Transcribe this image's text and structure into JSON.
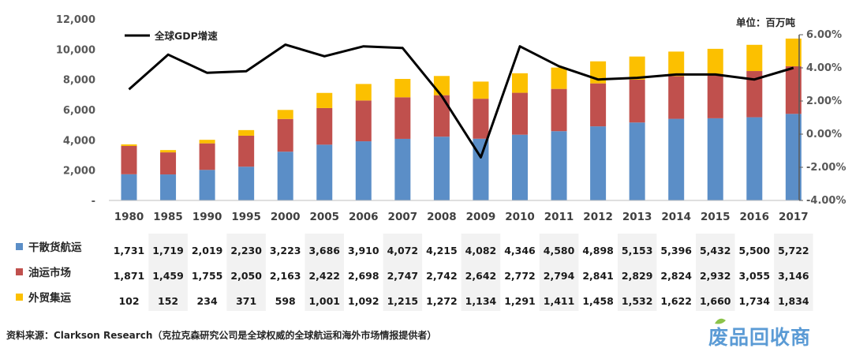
{
  "chart_data": {
    "type": "bar",
    "stacked": true,
    "categories": [
      "1980",
      "1985",
      "1990",
      "1995",
      "2000",
      "2005",
      "2006",
      "2007",
      "2008",
      "2009",
      "2010",
      "2011",
      "2012",
      "2013",
      "2014",
      "2015",
      "2016",
      "2017"
    ],
    "series": [
      {
        "name": "干散货航运",
        "color": "#5b8ec7",
        "values": [
          1731,
          1719,
          2019,
          2230,
          3223,
          3686,
          3910,
          4072,
          4215,
          4082,
          4346,
          4580,
          4898,
          5153,
          5396,
          5432,
          5500,
          5722
        ]
      },
      {
        "name": "油运市场",
        "color": "#c0504d",
        "values": [
          1871,
          1459,
          1755,
          2050,
          2163,
          2422,
          2698,
          2747,
          2742,
          2642,
          2772,
          2794,
          2841,
          2829,
          2824,
          2932,
          3055,
          3146
        ]
      },
      {
        "name": "外贸集运",
        "color": "#fcc000",
        "values": [
          102,
          152,
          234,
          371,
          598,
          1001,
          1092,
          1215,
          1272,
          1134,
          1291,
          1411,
          1458,
          1532,
          1622,
          1660,
          1734,
          1834
        ]
      }
    ],
    "line_series": {
      "name": "全球GDP增速",
      "color": "#000000",
      "axis": "right",
      "values": [
        2.7,
        4.8,
        3.7,
        3.8,
        5.4,
        4.7,
        5.3,
        5.2,
        2.3,
        -1.4,
        5.3,
        4.1,
        3.3,
        3.4,
        3.6,
        3.6,
        3.3,
        4.0
      ]
    },
    "y_left": {
      "ylim": [
        0,
        12000
      ],
      "ticks": [
        "-",
        "2,000",
        "4,000",
        "6,000",
        "8,000",
        "10,000",
        "12,000"
      ]
    },
    "y_right": {
      "ylim": [
        -4,
        6
      ],
      "ticks": [
        "-4.00%",
        "-2.00%",
        "0.00%",
        "2.00%",
        "4.00%",
        "6.00%"
      ]
    },
    "unit_label": "单位：百万吨",
    "legend_position": "top-left",
    "table_labels": [
      "干散货航运",
      "油运市场",
      "外贸集运"
    ],
    "table_values": [
      [
        "1,731",
        "1,719",
        "2,019",
        "2,230",
        "3,223",
        "3,686",
        "3,910",
        "4,072",
        "4,215",
        "4,082",
        "4,346",
        "4,580",
        "4,898",
        "5,153",
        "5,396",
        "5,432",
        "5,500",
        "5,722"
      ],
      [
        "1,871",
        "1,459",
        "1,755",
        "2,050",
        "2,163",
        "2,422",
        "2,698",
        "2,747",
        "2,742",
        "2,642",
        "2,772",
        "2,794",
        "2,841",
        "2,829",
        "2,824",
        "2,932",
        "3,055",
        "3,146"
      ],
      [
        "102",
        "152",
        "234",
        "371",
        "598",
        "1,001",
        "1,092",
        "1,215",
        "1,272",
        "1,134",
        "1,291",
        "1,411",
        "1,458",
        "1,532",
        "1,622",
        "1,660",
        "1,734",
        "1,834"
      ]
    ],
    "source": "资料来源：Clarkson Research（克拉克森研究公司是全球权威的全球航运和海外市场情报提供者）",
    "watermark": "废品回收商"
  }
}
